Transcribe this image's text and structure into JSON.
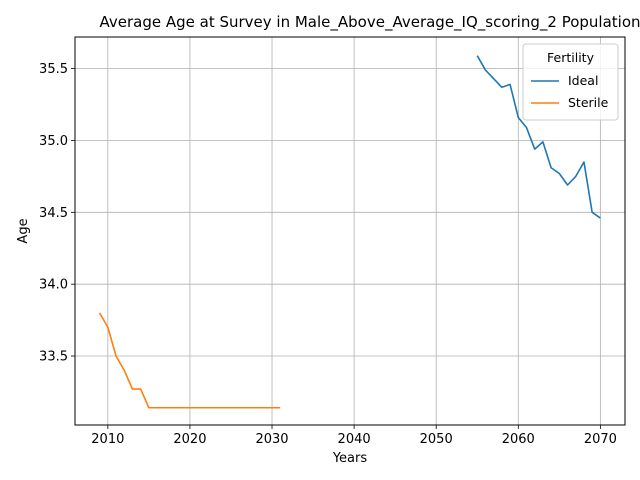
{
  "chart_data": {
    "type": "line",
    "title": "Average Age at Survey in Male_Above_Average_IQ_scoring_2 Population",
    "xlabel": "Years",
    "ylabel": "Age",
    "xlim": [
      2006,
      2073
    ],
    "ylim": [
      33.02,
      35.72
    ],
    "xticks": [
      2010,
      2020,
      2030,
      2040,
      2050,
      2060,
      2070
    ],
    "yticks": [
      33.5,
      34.0,
      34.5,
      35.0,
      35.5
    ],
    "ytick_labels": [
      "33.5",
      "34.0",
      "34.5",
      "35.0",
      "35.5"
    ],
    "grid": true,
    "legend": {
      "title": "Fertility",
      "position": "top-right"
    },
    "series": [
      {
        "name": "Ideal",
        "color": "#1f77b4",
        "x": [
          2055,
          2056,
          2057,
          2058,
          2059,
          2060,
          2061,
          2062,
          2063,
          2064,
          2065,
          2066,
          2067,
          2068,
          2069,
          2070
        ],
        "y": [
          35.59,
          35.49,
          35.43,
          35.37,
          35.39,
          35.16,
          35.09,
          34.94,
          34.99,
          34.81,
          34.77,
          34.69,
          34.75,
          34.85,
          34.5,
          34.46
        ]
      },
      {
        "name": "Sterile",
        "color": "#ff7f0e",
        "x": [
          2009,
          2010,
          2011,
          2012,
          2013,
          2014,
          2015,
          2016,
          2017,
          2018,
          2019,
          2020,
          2021,
          2022,
          2023,
          2024,
          2025,
          2026,
          2027,
          2028,
          2029,
          2030,
          2031
        ],
        "y": [
          33.8,
          33.7,
          33.5,
          33.4,
          33.27,
          33.27,
          33.14,
          33.14,
          33.14,
          33.14,
          33.14,
          33.14,
          33.14,
          33.14,
          33.14,
          33.14,
          33.14,
          33.14,
          33.14,
          33.14,
          33.14,
          33.14,
          33.14
        ]
      }
    ]
  }
}
